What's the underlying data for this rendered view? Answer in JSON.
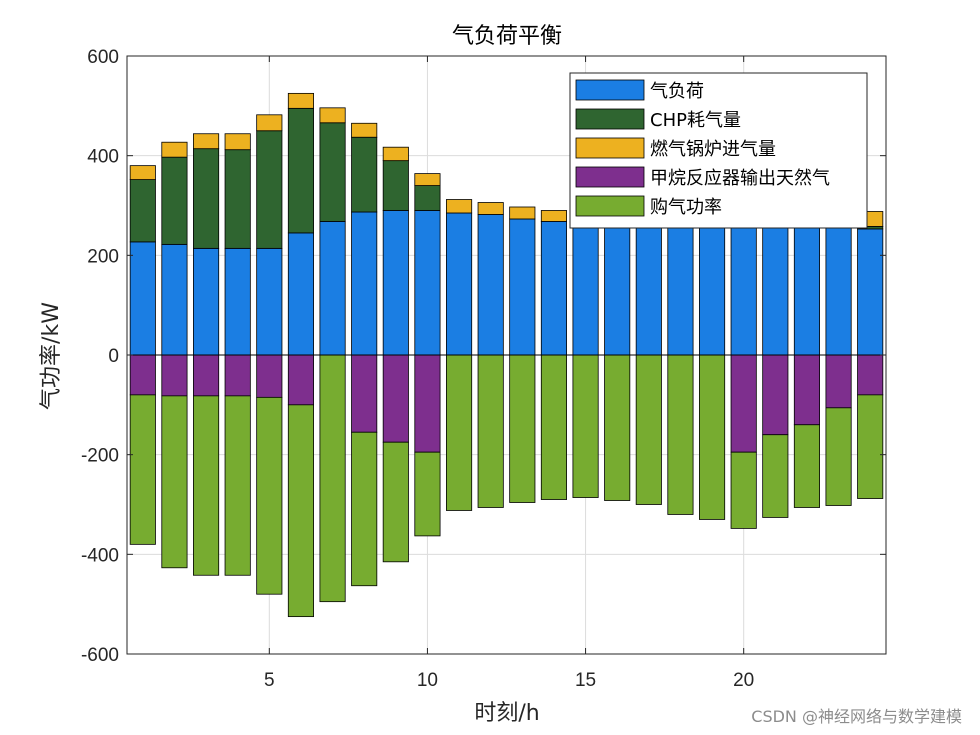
{
  "chart_data": {
    "type": "bar",
    "stacked": true,
    "title": "气负荷平衡",
    "xlabel": "时刻/h",
    "ylabel": "气功率/kW",
    "xlim": [
      0.5,
      24.5
    ],
    "ylim": [
      -600,
      600
    ],
    "xticks": [
      5,
      10,
      15,
      20
    ],
    "yticks": [
      -600,
      -400,
      -200,
      0,
      200,
      400,
      600
    ],
    "grid": true,
    "legend_position": "top-right",
    "x": [
      1,
      2,
      3,
      4,
      5,
      6,
      7,
      8,
      9,
      10,
      11,
      12,
      13,
      14,
      15,
      16,
      17,
      18,
      19,
      20,
      21,
      22,
      23,
      24
    ],
    "series": [
      {
        "name": "气负荷",
        "color": "#1b7ee3",
        "values": [
          227,
          222,
          214,
          214,
          214,
          245,
          268,
          287,
          290,
          290,
          285,
          282,
          273,
          268,
          266,
          269,
          273,
          276,
          279,
          281,
          281,
          278,
          273,
          253
        ]
      },
      {
        "name": "CHP耗气量",
        "color": "#2f6530",
        "values": [
          125,
          175,
          200,
          198,
          236,
          250,
          198,
          150,
          100,
          50,
          0,
          0,
          0,
          0,
          0,
          0,
          0,
          0,
          0,
          0,
          0,
          0,
          0,
          5
        ]
      },
      {
        "name": "燃气锅炉进气量",
        "color": "#edb120",
        "values": [
          28,
          30,
          30,
          32,
          32,
          30,
          30,
          28,
          27,
          24,
          27,
          24,
          24,
          22,
          20,
          18,
          16,
          14,
          12,
          12,
          12,
          12,
          12,
          30
        ]
      },
      {
        "name": "甲烷反应器输出天然气",
        "color": "#7e2f8e",
        "values": [
          -80,
          -82,
          -82,
          -82,
          -85,
          -100,
          0,
          -155,
          -175,
          -195,
          0,
          0,
          0,
          0,
          0,
          0,
          0,
          0,
          0,
          -195,
          -160,
          -140,
          -106,
          -80
        ]
      },
      {
        "name": "购气功率",
        "color": "#77ac30",
        "values": [
          -300,
          -345,
          -360,
          -360,
          -395,
          -425,
          -495,
          -308,
          -240,
          -168,
          -312,
          -306,
          -296,
          -290,
          -286,
          -292,
          -300,
          -320,
          -330,
          -153,
          -166,
          -166,
          -196,
          -208
        ]
      }
    ]
  },
  "watermark": "CSDN @神经网络与数学建模"
}
